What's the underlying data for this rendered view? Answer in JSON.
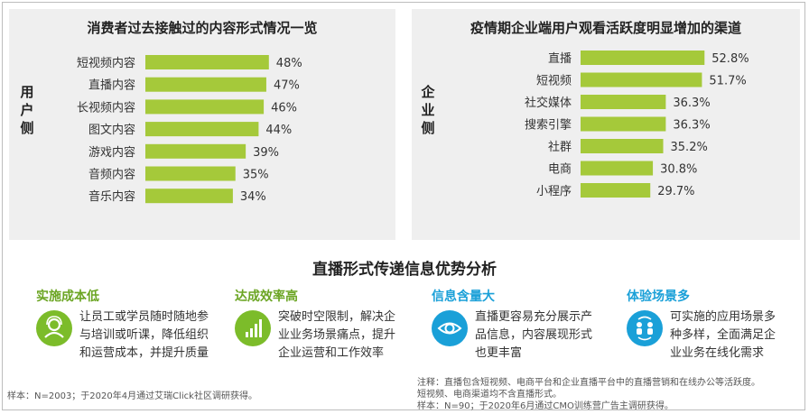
{
  "left_panel": {
    "title": "消费者过去接触过的内容形式情况一览",
    "side_label": "用户侧"
  },
  "right_panel": {
    "title": "疫情期企业端用户观看活跃度明显增加的渠道",
    "side_label": "企业侧"
  },
  "chart_data": [
    {
      "type": "bar",
      "orientation": "horizontal",
      "title": "消费者过去接触过的内容形式情况一览",
      "categories": [
        "短视频内容",
        "直播内容",
        "长视频内容",
        "图文内容",
        "游戏内容",
        "音频内容",
        "音乐内容"
      ],
      "values": [
        48,
        47,
        46,
        44,
        39,
        35,
        34
      ],
      "value_labels": [
        "48%",
        "47%",
        "46%",
        "44%",
        "39%",
        "35%",
        "34%"
      ],
      "unit": "%",
      "xlim": [
        0,
        60
      ],
      "bar_color": "#a5c93a",
      "grid": false
    },
    {
      "type": "bar",
      "orientation": "horizontal",
      "title": "疫情期企业端用户观看活跃度明显增加的渠道",
      "categories": [
        "直播",
        "短视频",
        "社交媒体",
        "搜索引擎",
        "社群",
        "电商",
        "小程序"
      ],
      "values": [
        52.8,
        51.7,
        36.3,
        36.3,
        35.2,
        30.8,
        29.7
      ],
      "value_labels": [
        "52.8%",
        "51.7%",
        "36.3%",
        "36.3%",
        "35.2%",
        "30.8%",
        "29.7%"
      ],
      "unit": "%",
      "xlim": [
        0,
        60
      ],
      "bar_color": "#a5c93a",
      "grid": false
    }
  ],
  "section_title": "直播形式传递信息优势分析",
  "features": [
    {
      "title": "实施成本低",
      "icon": "user-icon",
      "color": "#7cbc2a",
      "lines": [
        "让员工或学员随时随地参",
        "与培训或听课，降低组织",
        "和运营成本，并提升质量"
      ]
    },
    {
      "title": "达成效率高",
      "icon": "bar-chart-icon",
      "color": "#7cbc2a",
      "lines": [
        "突破时空限制，解决企",
        "业业务场景痛点，提升",
        "企业运营和工作效率"
      ]
    },
    {
      "title": "信息含量大",
      "icon": "eye-icon",
      "color": "#1aa0d8",
      "lines": [
        "直播更容易充分展示产",
        "品信息，内容展现形式",
        "也更丰富"
      ]
    },
    {
      "title": "体验场景多",
      "icon": "people-exchange-icon",
      "color": "#1aa0d8",
      "lines": [
        "可实施的应用场景多",
        "种多样，全面满足企",
        "业业务在线化需求"
      ]
    }
  ],
  "footnotes": {
    "left": "样本：N=2003；于2020年4月通过艾瑞Click社区调研获得。",
    "right": [
      "注释：直播包含短视频、电商平台和企业直播平台中的直播营销和在线办公等活跃度。",
      "短视频、电商渠道均不含直播形式。",
      "样本：N=90；于2020年6月通过CMO训练营广告主调研获得。"
    ]
  }
}
